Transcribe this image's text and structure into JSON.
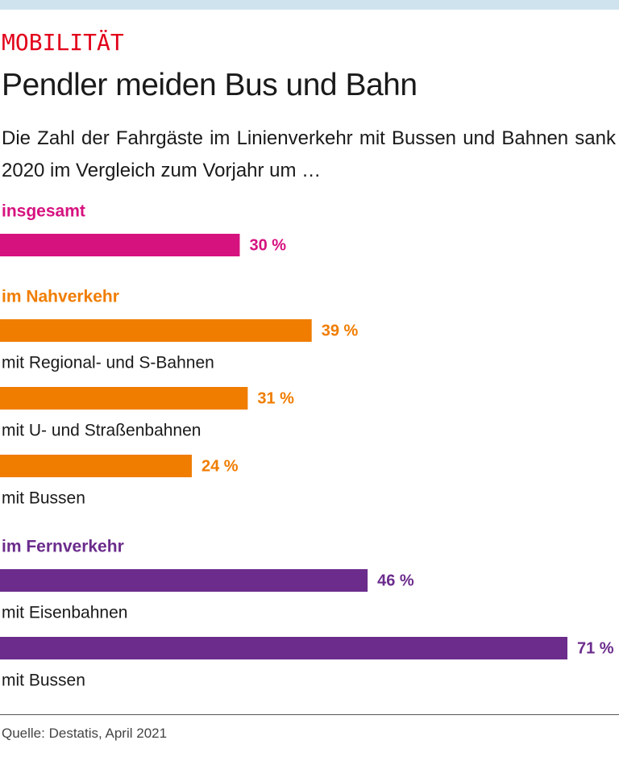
{
  "chart_data": {
    "type": "bar",
    "kicker": "MOBILITÄT",
    "title": "Pendler meiden Bus und Bahn",
    "subtitle": "Die Zahl der Fahrgäste im Linienverkehr mit Bussen und Bahnen sank 2020 im Vergleich zum Vorjahr um …",
    "source": "Quelle: Destatis, April 2021",
    "groups": [
      {
        "name": "insgesamt",
        "color": "#d6127f",
        "categories": [
          null
        ],
        "values": [
          30
        ],
        "value_labels": [
          "30 %"
        ]
      },
      {
        "name": "im Nahverkehr",
        "color": "#f07d00",
        "categories": [
          "mit Regional- und S-Bahnen",
          "mit U- und Straßenbahnen",
          "mit Bussen"
        ],
        "values": [
          39,
          31,
          24
        ],
        "value_labels": [
          "39 %",
          "31 %",
          "24 %"
        ]
      },
      {
        "name": "im Fernverkehr",
        "color": "#6b2c8c",
        "categories": [
          "mit Eisenbahnen",
          "mit Bussen"
        ],
        "values": [
          46,
          71
        ],
        "value_labels": [
          "46 %",
          "71 %"
        ]
      }
    ]
  }
}
